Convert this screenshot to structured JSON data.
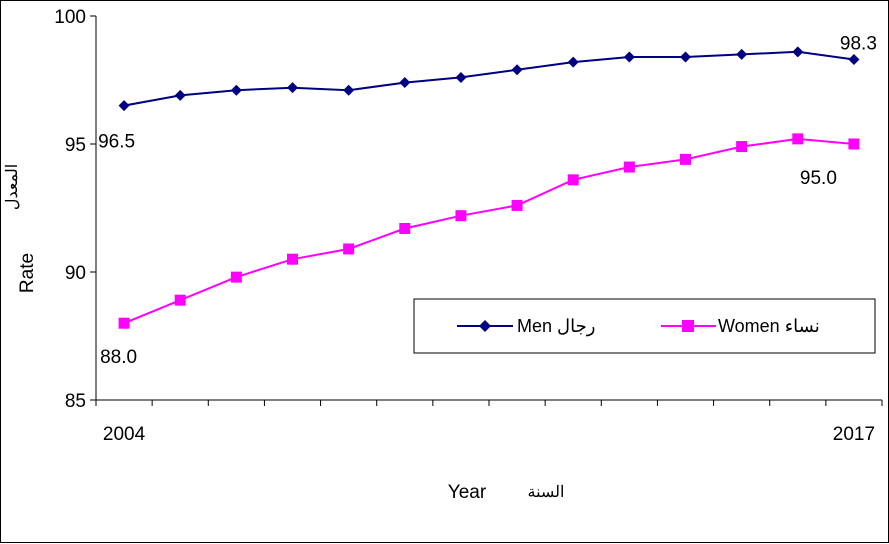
{
  "chart_data": {
    "type": "line",
    "x": [
      2004,
      2005,
      2006,
      2007,
      2008,
      2009,
      2010,
      2011,
      2012,
      2013,
      2014,
      2015,
      2016,
      2017
    ],
    "x_tick_labels": [
      "2004",
      "2017"
    ],
    "series": [
      {
        "name": "Men  رجال",
        "color": "#000080",
        "marker": "diamond",
        "values": [
          96.5,
          96.9,
          97.1,
          97.2,
          97.1,
          97.4,
          97.6,
          97.9,
          98.2,
          98.4,
          98.4,
          98.5,
          98.6,
          98.3
        ]
      },
      {
        "name": "Women نساء",
        "color": "#ff00ff",
        "marker": "square",
        "values": [
          88.0,
          88.9,
          89.8,
          90.5,
          90.9,
          91.7,
          92.2,
          92.6,
          93.6,
          94.1,
          94.4,
          94.9,
          95.2,
          95.0
        ]
      }
    ],
    "data_labels": [
      "96.5",
      "98.3",
      "88.0",
      "95.0"
    ],
    "ylim": [
      85,
      100
    ],
    "y_ticks": [
      "85",
      "90",
      "95",
      "100"
    ],
    "xlabel": "Year",
    "xlabel_arabic": "السنة",
    "ylabel": "Rate",
    "ylabel_arabic": "المعدل",
    "legend_position": "center-right",
    "grid": false
  }
}
